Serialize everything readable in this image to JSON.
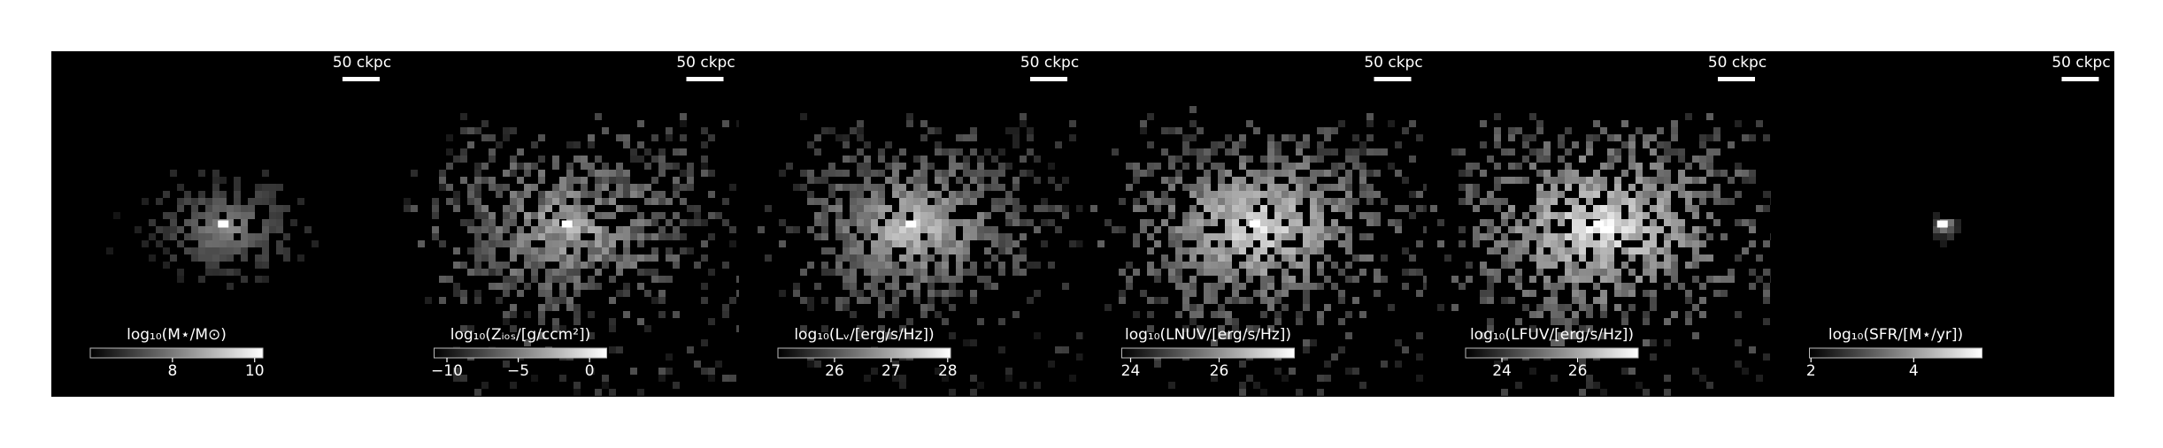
{
  "panels": [
    {
      "scale_bar": "50 ckpc",
      "colorbar": {
        "label": "log₁₀(M⋆/M⊙)",
        "lim": [
          6,
          10.2
        ],
        "ticks": [
          8,
          10
        ]
      }
    },
    {
      "scale_bar": "50 ckpc",
      "colorbar": {
        "label": "log₁₀(Zᵢₒₛ/[g/ccm²])",
        "lim": [
          -10.9,
          1.2
        ],
        "ticks": [
          {
            "value": -10,
            "label": "−10"
          },
          {
            "value": -5,
            "label": "−5"
          },
          0
        ]
      }
    },
    {
      "scale_bar": "50 ckpc",
      "colorbar": {
        "label": "log₁₀(Lᵥ/[erg/s/Hz])",
        "lim": [
          25,
          28.05
        ],
        "ticks": [
          26,
          27,
          28
        ]
      }
    },
    {
      "scale_bar": "50 ckpc",
      "colorbar": {
        "label": "log₁₀(LNUV/[erg/s/Hz])",
        "lim": [
          23.8,
          27.7
        ],
        "ticks": [
          24,
          26
        ]
      }
    },
    {
      "scale_bar": "50 ckpc",
      "colorbar": {
        "label": "log₁₀(LFUV/[erg/s/Hz])",
        "lim": [
          23.04,
          27.6
        ],
        "ticks": [
          24,
          26
        ]
      }
    },
    {
      "scale_bar": "50 ckpc",
      "colorbar": {
        "label": "log₁₀(SFR/[M⋆/yr])",
        "lim": [
          1.97,
          5.33
        ],
        "ticks": [
          2,
          4
        ]
      }
    }
  ]
}
